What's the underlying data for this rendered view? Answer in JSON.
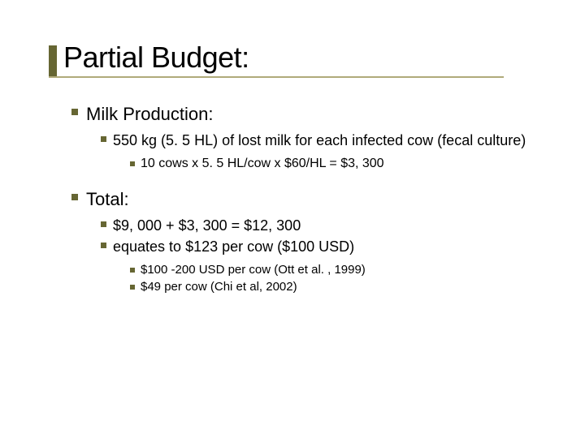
{
  "title": "Partial Budget:",
  "accent_color": "#666633",
  "underline_color": "#b0aa7a",
  "sections": [
    {
      "heading": "Milk Production:",
      "items": [
        {
          "text": "550 kg (5. 5 HL) of lost milk for each infected cow (fecal culture)",
          "subitems": [
            {
              "text": "10 cows x 5. 5 HL/cow x $60/HL = $3, 300"
            }
          ]
        }
      ]
    },
    {
      "heading": "Total:",
      "items": [
        {
          "text": "$9, 000 + $3, 300 = $12, 300"
        },
        {
          "text": "equates to $123 per cow ($100 USD)",
          "subitems": [
            {
              "text": "$100 -200 USD per cow (Ott et al. , 1999)"
            },
            {
              "text": "$49 per cow (Chi et al, 2002)"
            }
          ]
        }
      ]
    }
  ]
}
